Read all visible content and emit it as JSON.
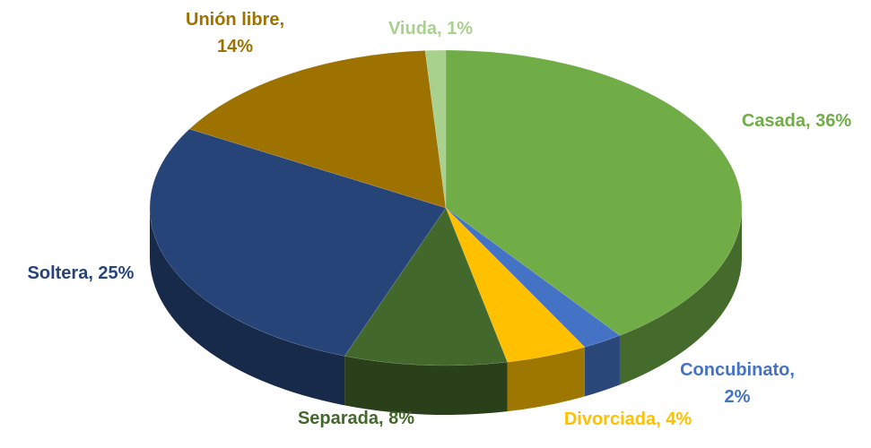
{
  "chart_data": {
    "type": "pie3d",
    "values": [
      36,
      2,
      4,
      8,
      25,
      14,
      1
    ],
    "value_labels": [
      "Casada, 36%",
      "Concubinato, 2%",
      "Divorciada, 4%",
      "Separada, 8%",
      "Soltera, 25%",
      "Unión libre, 14%",
      "Viuda, 1%"
    ],
    "colors": [
      "#70ad47",
      "#4472c4",
      "#ffc000",
      "#43682b",
      "#264478",
      "#9e7200",
      "#a9d18e"
    ]
  }
}
